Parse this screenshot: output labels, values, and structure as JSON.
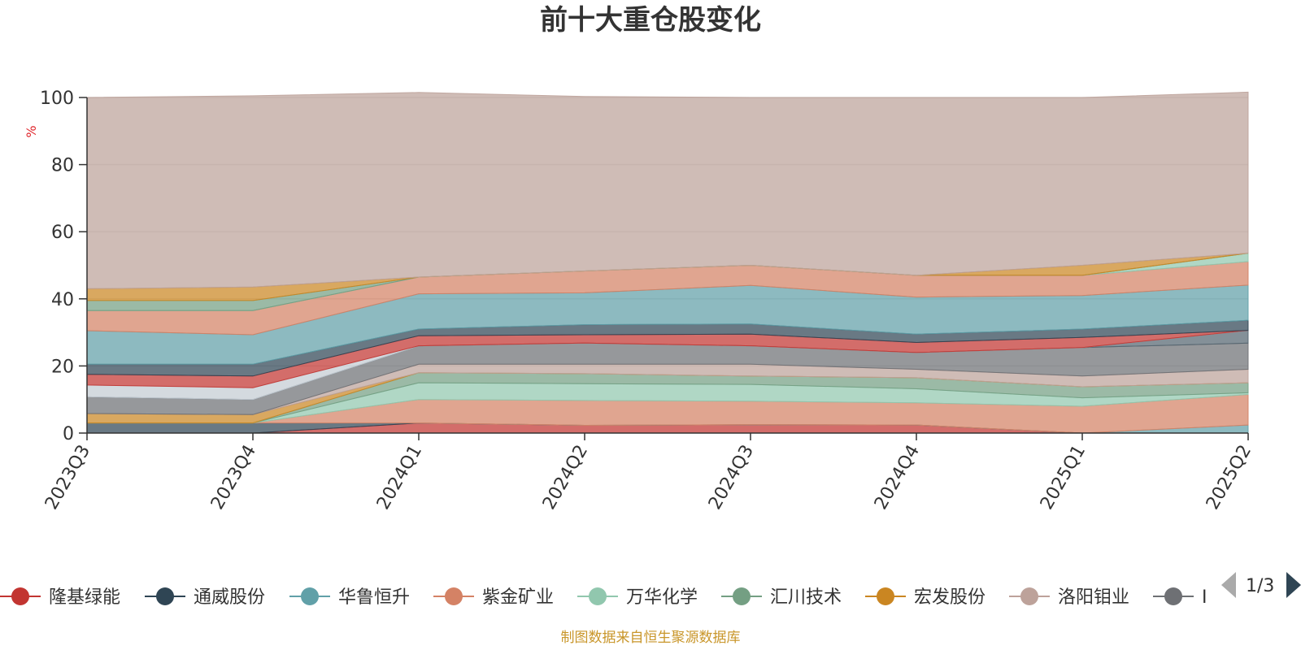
{
  "chart_data": {
    "type": "area",
    "stacked": true,
    "title": "前十大重仓股变化",
    "ylabel": "%",
    "ylim": [
      0,
      100
    ],
    "yticks": [
      0,
      20,
      40,
      60,
      80,
      100
    ],
    "grid": true,
    "categories": [
      "2023Q3",
      "2023Q4",
      "2024Q1",
      "2024Q2",
      "2024Q3",
      "2024Q4",
      "2025Q1",
      "2025Q2"
    ],
    "series": [
      {
        "name": "隆基绿能",
        "color": "#c23531",
        "values": [
          0,
          0,
          3.0,
          2.3,
          2.5,
          2.4,
          0,
          0
        ]
      },
      {
        "name": "通威股份",
        "color": "#2f4554",
        "values": [
          3.0,
          3.0,
          0,
          0,
          0,
          0,
          0,
          0
        ]
      },
      {
        "name": "华鲁恒升",
        "color": "#61a0a8",
        "values": [
          0,
          0,
          0,
          0,
          0,
          0,
          0,
          2.4
        ]
      },
      {
        "name": "紫金矿业",
        "color": "#d48265",
        "values": [
          0,
          0,
          7.0,
          7.4,
          7.0,
          6.6,
          8.0,
          9.1
        ]
      },
      {
        "name": "万华化学",
        "color": "#91c7ae",
        "values": [
          0,
          0,
          5.0,
          5.0,
          5.0,
          4.2,
          2.5,
          0.5
        ]
      },
      {
        "name": "汇川技术",
        "color": "#749f83",
        "values": [
          0,
          0,
          3.0,
          3.0,
          2.5,
          3.3,
          3.3,
          3.0
        ]
      },
      {
        "name": "宏发股份",
        "color": "#ca8622",
        "values": [
          2.8,
          2.5,
          0,
          0,
          0,
          0,
          0,
          0
        ]
      },
      {
        "name": "洛阳钼业",
        "color": "#bda29a",
        "values": [
          0,
          0,
          2.5,
          2.8,
          3.5,
          2.5,
          3.2,
          4.0
        ]
      },
      {
        "name": "",
        "color": "#6e7074",
        "values": [
          5.0,
          4.5,
          5.5,
          6.3,
          5.5,
          5.0,
          8.5,
          7.8
        ]
      },
      {
        "name": "",
        "color": "#546570",
        "values": [
          0,
          0,
          0,
          0,
          0,
          0,
          0,
          3.8
        ]
      },
      {
        "name": "",
        "color": "#c4ccd3",
        "values": [
          3.5,
          3.5,
          0,
          0,
          0,
          0,
          0,
          0
        ]
      },
      {
        "name": "",
        "color": "#c23531",
        "values": [
          3.2,
          3.5,
          3.0,
          2.5,
          3.5,
          3.0,
          3.0,
          0
        ]
      },
      {
        "name": "",
        "color": "#2f4554",
        "values": [
          3.0,
          3.5,
          2.0,
          3.0,
          3.0,
          2.5,
          2.5,
          3.0
        ]
      },
      {
        "name": "",
        "color": "#61a0a8",
        "values": [
          10.0,
          8.8,
          10.5,
          9.5,
          11.5,
          11.0,
          10.0,
          10.5
        ]
      },
      {
        "name": "",
        "color": "#d48265",
        "values": [
          6.0,
          7.2,
          5.0,
          6.5,
          6.0,
          6.5,
          6.0,
          7.0
        ]
      },
      {
        "name": "",
        "color": "#91c7ae",
        "values": [
          0,
          0,
          0,
          0,
          0,
          0,
          0,
          2.5
        ]
      },
      {
        "name": "",
        "color": "#749f83",
        "values": [
          3.0,
          3.0,
          0,
          0,
          0,
          0,
          0,
          0
        ]
      },
      {
        "name": "",
        "color": "#ca8622",
        "values": [
          3.5,
          4.0,
          0,
          0,
          0,
          0,
          3.0,
          0
        ]
      },
      {
        "name": "",
        "color": "#bda29a",
        "values": [
          57.0,
          57.0,
          55.0,
          52.0,
          50.0,
          53.0,
          50.0,
          48.0
        ]
      }
    ]
  },
  "legend": {
    "items": [
      {
        "label": "隆基绿能",
        "color": "#c23531"
      },
      {
        "label": "通威股份",
        "color": "#2f4554"
      },
      {
        "label": "华鲁恒升",
        "color": "#61a0a8"
      },
      {
        "label": "紫金矿业",
        "color": "#d48265"
      },
      {
        "label": "万华化学",
        "color": "#91c7ae"
      },
      {
        "label": "汇川技术",
        "color": "#749f83"
      },
      {
        "label": "宏发股份",
        "color": "#ca8622"
      },
      {
        "label": "洛阳钼业",
        "color": "#bda29a"
      },
      {
        "label": "I",
        "color": "#6e7074"
      }
    ],
    "page": "1/3"
  },
  "source": "制图数据来自恒生聚源数据库"
}
